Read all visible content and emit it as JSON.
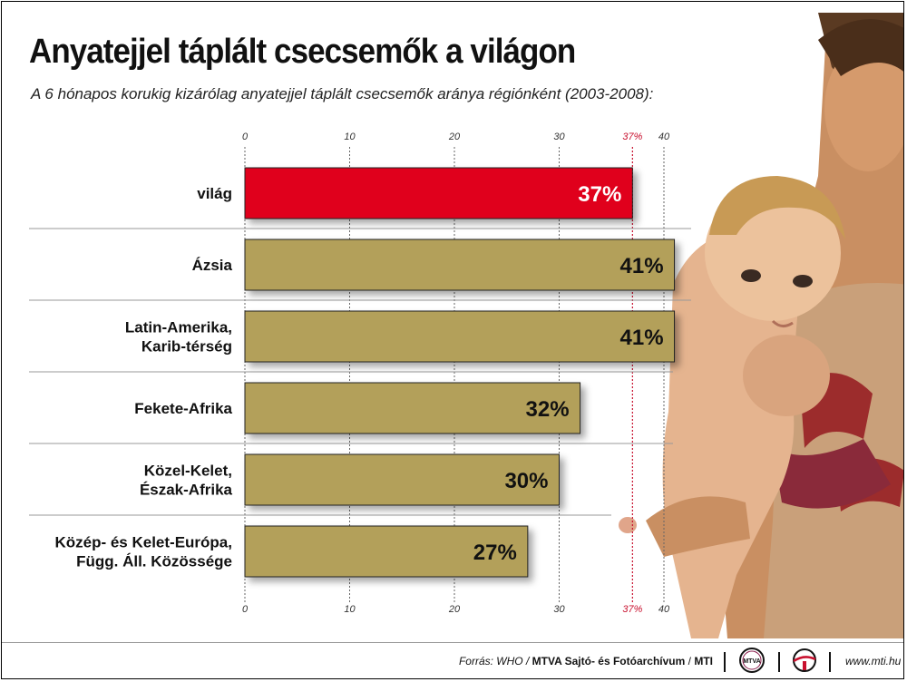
{
  "title": "Anyatejjel táplált csecsemők a világon",
  "subtitle": "A 6 hónapos korukig kizárólag anyatejjel táplált csecsemők aránya régiónként (2003-2008):",
  "colors": {
    "highlight": "#e0001b",
    "bar": "#b3a05a",
    "marker": "#c8102e"
  },
  "chart_data": {
    "type": "bar",
    "orientation": "horizontal",
    "categories": [
      [
        "világ"
      ],
      [
        "Ázsia"
      ],
      [
        "Latin-Amerika,",
        "Karib-térség"
      ],
      [
        "Fekete-Afrika"
      ],
      [
        "Közel-Kelet,",
        "Észak-Afrika"
      ],
      [
        "Közép- és Kelet-Európa,",
        "Függ. Áll. Közössége"
      ]
    ],
    "values": [
      37,
      41,
      41,
      32,
      30,
      27
    ],
    "value_labels": [
      "37%",
      "41%",
      "41%",
      "32%",
      "30%",
      "27%"
    ],
    "highlight_index": 0,
    "xlim": [
      0,
      40
    ],
    "ticks": [
      0,
      10,
      20,
      30,
      40
    ],
    "tick_labels": [
      "0",
      "10",
      "20",
      "30",
      "40"
    ],
    "reference_value": 37,
    "reference_label": "37%",
    "tick_positions": [
      "top",
      "bottom"
    ],
    "grid": true
  },
  "footer": {
    "source_prefix": "Forrás: WHO / ",
    "source_bold": "MTVA Sajtó- és Fotóarchívum",
    "source_sep": " / ",
    "source_mti": "MTI",
    "mtva_logo_text": "MTVA",
    "website": "www.mti.hu"
  }
}
